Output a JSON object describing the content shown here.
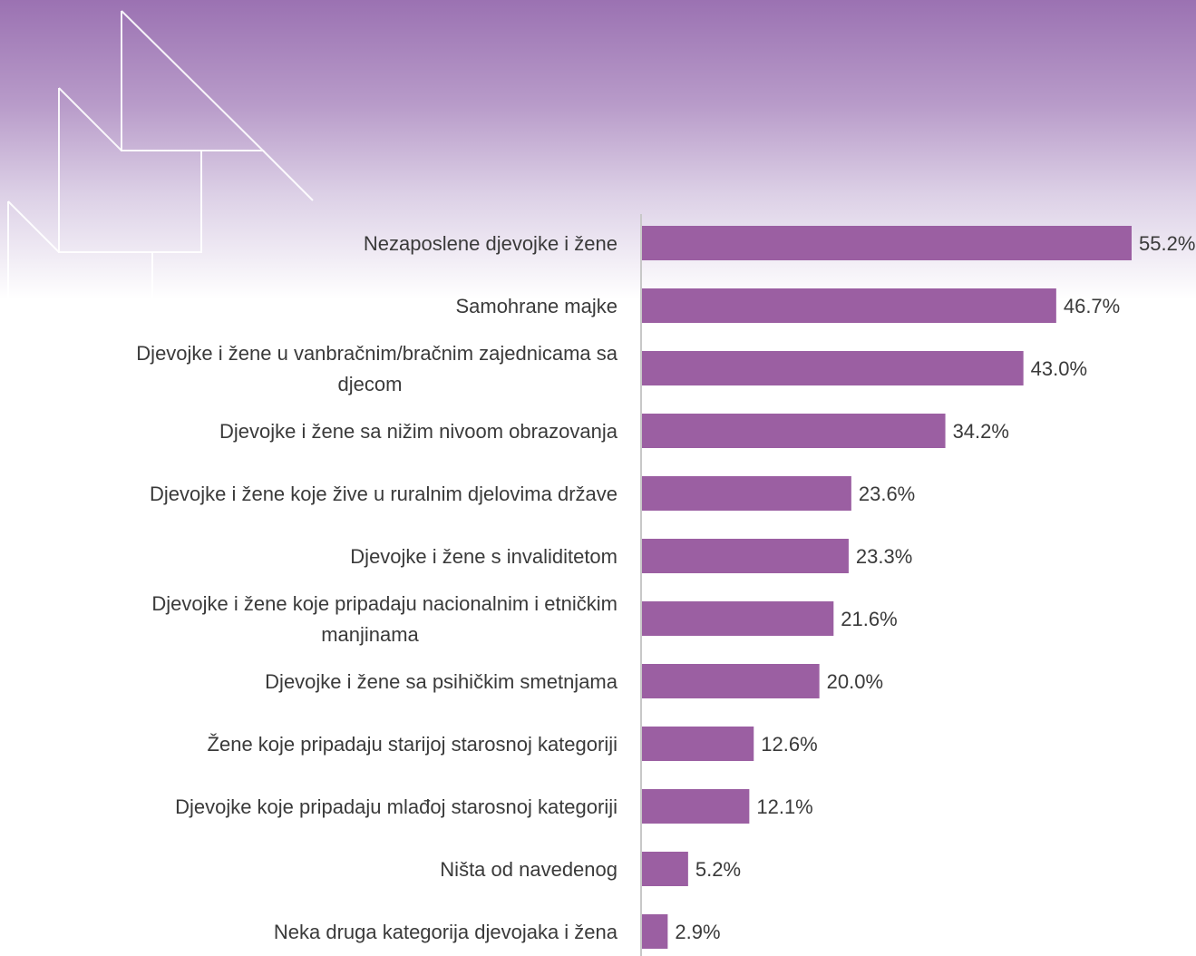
{
  "chart_data": {
    "type": "bar",
    "orientation": "horizontal",
    "categories": [
      [
        "Nezaposlene djevojke i žene"
      ],
      [
        "Samohrane majke"
      ],
      [
        "Djevojke i žene u vanbračnim/bračnim zajednicama sa",
        "djecom"
      ],
      [
        "Djevojke i žene sa nižim nivoom obrazovanja"
      ],
      [
        "Djevojke i žene koje žive u ruralnim djelovima države"
      ],
      [
        "Djevojke i žene s invaliditetom"
      ],
      [
        "Djevojke i žene koje pripadaju nacionalnim i etničkim",
        "manjinama"
      ],
      [
        "Djevojke i žene sa psihičkim smetnjama"
      ],
      [
        "Žene koje pripadaju starijoj starosnoj kategoriji"
      ],
      [
        "Djevojke koje pripadaju mlađoj starosnoj kategoriji"
      ],
      [
        "Ništa od navedenog"
      ],
      [
        "Neka druga kategorija djevojaka i žena"
      ]
    ],
    "values": [
      55.2,
      46.7,
      43.0,
      34.2,
      23.6,
      23.3,
      21.6,
      20.0,
      12.6,
      12.1,
      5.2,
      2.9
    ],
    "value_labels": [
      "55.2%",
      "46.7%",
      "43.0%",
      "34.2%",
      "23.6%",
      "23.3%",
      "21.6%",
      "20.0%",
      "12.6%",
      "12.1%",
      "5.2%",
      "2.9%"
    ],
    "unit": "%",
    "bar_color": "#9b5fa2",
    "axis_color": "#c8c8c8",
    "text_color": "#3a3a3a",
    "background_top_color": "#9b72b2"
  }
}
